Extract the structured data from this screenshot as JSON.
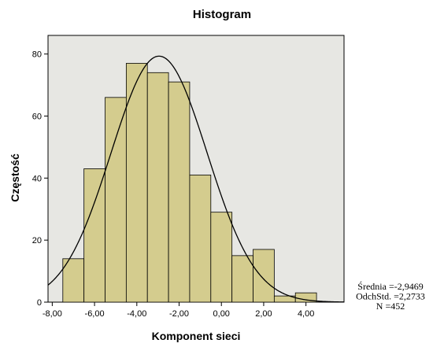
{
  "chart_data": {
    "type": "bar",
    "title": "Histogram",
    "xlabel": "Komponent sieci",
    "ylabel": "Częstość",
    "xlim": [
      -8.2,
      5.8
    ],
    "ylim": [
      0,
      86
    ],
    "x_ticks": [
      -8,
      -6,
      -4,
      -2,
      0,
      2,
      4
    ],
    "x_tick_labels": [
      "-8,00",
      "-6,00",
      "-4,00",
      "-2,00",
      "0,00",
      "2,00",
      "4,00"
    ],
    "y_ticks": [
      0,
      20,
      40,
      60,
      80
    ],
    "y_tick_labels": [
      "0",
      "20",
      "40",
      "60",
      "80"
    ],
    "bins": [
      {
        "start": -7.5,
        "end": -6.5,
        "count": 14
      },
      {
        "start": -6.5,
        "end": -5.5,
        "count": 43
      },
      {
        "start": -5.5,
        "end": -4.5,
        "count": 66
      },
      {
        "start": -4.5,
        "end": -3.5,
        "count": 77
      },
      {
        "start": -3.5,
        "end": -2.5,
        "count": 74
      },
      {
        "start": -2.5,
        "end": -1.5,
        "count": 71
      },
      {
        "start": -1.5,
        "end": -0.5,
        "count": 41
      },
      {
        "start": -0.5,
        "end": 0.5,
        "count": 29
      },
      {
        "start": 0.5,
        "end": 1.5,
        "count": 15
      },
      {
        "start": 1.5,
        "end": 2.5,
        "count": 17
      },
      {
        "start": 2.5,
        "end": 3.5,
        "count": 2
      },
      {
        "start": 3.5,
        "end": 4.5,
        "count": 3
      }
    ],
    "normal_curve": {
      "mean": -2.9469,
      "sd": 2.2733,
      "n": 452,
      "bin_width": 1.0
    },
    "stats_lines": [
      "Średnia =-2,9469",
      "OdchStd. =2,2733",
      "N =452"
    ],
    "colors": {
      "plot_bg": "#e7e7e3",
      "bar_fill": "#d4cc8e",
      "bar_stroke": "#000000",
      "curve": "#000000"
    },
    "grid": false
  }
}
